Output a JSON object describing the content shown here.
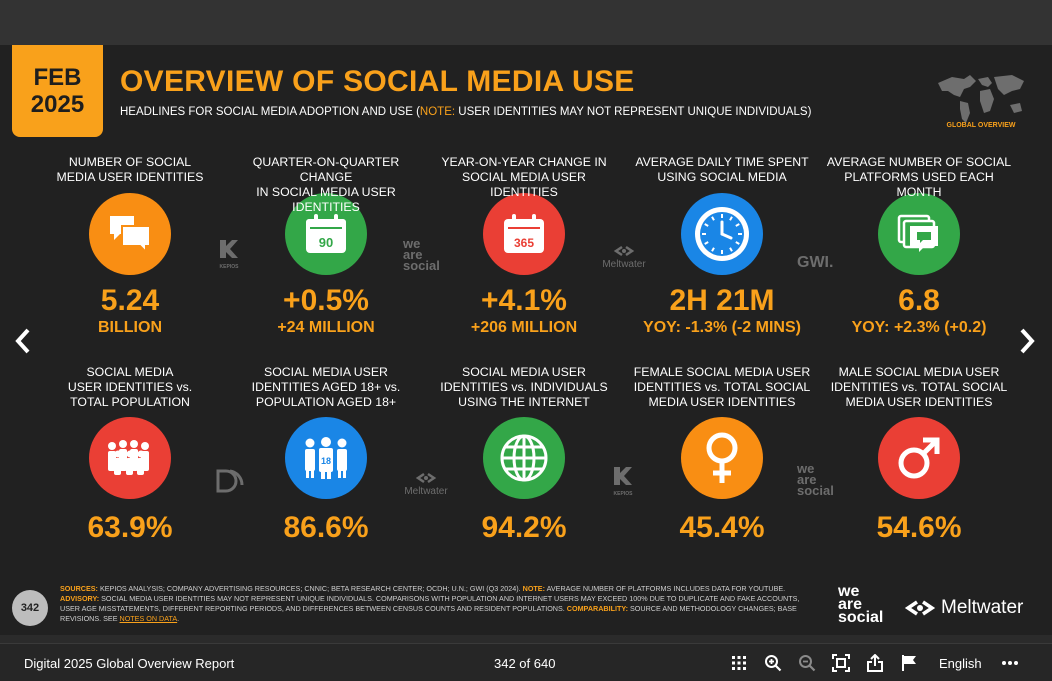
{
  "header": {
    "date_month": "FEB",
    "date_year": "2025",
    "title": "OVERVIEW OF SOCIAL MEDIA USE",
    "subtitle_pre": "HEADLINES FOR SOCIAL MEDIA ADOPTION AND USE (",
    "subtitle_note": "NOTE:",
    "subtitle_post": " USER IDENTITIES MAY NOT REPRESENT UNIQUE INDIVIDUALS)",
    "map_label": "GLOBAL OVERVIEW"
  },
  "colors": {
    "accent": "#f9a11b",
    "orange": "#f98e13",
    "green": "#33a748",
    "red": "#ea3f35",
    "blue": "#1a86e6"
  },
  "row1": [
    {
      "label1": "NUMBER OF SOCIAL",
      "label2": "MEDIA USER IDENTITIES",
      "value": "5.24",
      "sub": "BILLION",
      "icon": "chat-bubbles-icon"
    },
    {
      "label1": "QUARTER-ON-QUARTER CHANGE",
      "label2": "IN SOCIAL MEDIA USER IDENTITIES",
      "value": "+0.5%",
      "sub": "+24 MILLION",
      "icon": "calendar-90-icon",
      "icon_text": "90"
    },
    {
      "label1": "YEAR-ON-YEAR CHANGE IN",
      "label2": "SOCIAL MEDIA USER IDENTITIES",
      "value": "+4.1%",
      "sub": "+206 MILLION",
      "icon": "calendar-365-icon",
      "icon_text": "365"
    },
    {
      "label1": "AVERAGE DAILY TIME SPENT",
      "label2": "USING SOCIAL MEDIA",
      "value": "2H 21M",
      "sub": "YOY: -1.3% (-2 MINS)",
      "icon": "clock-icon"
    },
    {
      "label1": "AVERAGE NUMBER OF SOCIAL",
      "label2": "PLATFORMS USED EACH MONTH",
      "value": "6.8",
      "sub": "YOY: +2.3% (+0.2)",
      "icon": "stacked-chat-icon"
    }
  ],
  "row2": [
    {
      "label1": "SOCIAL MEDIA",
      "label2": "USER IDENTITIES vs.",
      "label3": "TOTAL POPULATION",
      "value": "63.9%",
      "icon": "crowd-icon"
    },
    {
      "label1": "SOCIAL MEDIA USER",
      "label2": "IDENTITIES AGED 18+ vs.",
      "label3": "POPULATION AGED 18+",
      "value": "86.6%",
      "icon": "adults-18-icon",
      "icon_text": "18"
    },
    {
      "label1": "SOCIAL MEDIA USER",
      "label2": "IDENTITIES vs. INDIVIDUALS",
      "label3": "USING THE INTERNET",
      "value": "94.2%",
      "icon": "globe-icon"
    },
    {
      "label1": "FEMALE SOCIAL MEDIA USER",
      "label2": "IDENTITIES vs. TOTAL SOCIAL",
      "label3": "MEDIA USER IDENTITIES",
      "value": "45.4%",
      "icon": "female-symbol-icon"
    },
    {
      "label1": "MALE SOCIAL MEDIA USER",
      "label2": "IDENTITIES vs. TOTAL SOCIAL",
      "label3": "MEDIA USER IDENTITIES",
      "value": "54.6%",
      "icon": "male-symbol-icon"
    }
  ],
  "brands": {
    "kepios": "KEPIOS",
    "we_are_social": [
      "we",
      "are",
      "social"
    ],
    "meltwater": "Meltwater",
    "gwi": "GWI."
  },
  "footer": {
    "page_badge": "342",
    "sources_label": "SOURCES:",
    "sources_text": " KEPIOS ANALYSIS; COMPANY ADVERTISING RESOURCES; CNNIC; BETA RESEARCH CENTER; OCDH; U.N.; GWI (Q3 2024).",
    "note_label": " NOTE:",
    "note_text": " AVERAGE NUMBER OF PLATFORMS INCLUDES DATA FOR YOUTUBE.",
    "advisory_label": "ADVISORY:",
    "advisory_text": " SOCIAL MEDIA USER IDENTITIES MAY NOT REPRESENT UNIQUE INDIVIDUALS. COMPARISONS WITH POPULATION AND INTERNET USERS MAY EXCEED 100% DUE TO DUPLICATE AND FAKE ACCOUNTS, USER AGE MISSTATEMENTS, DIFFERENT REPORTING PERIODS, AND DIFFERENCES BETWEEN CENSUS COUNTS AND RESIDENT POPULATIONS.",
    "comparability_label": " COMPARABILITY:",
    "comparability_text": " SOURCE AND METHODOLOGY CHANGES; BASE REVISIONS. SEE ",
    "notes_link": "NOTES ON DATA",
    "end": ".",
    "was_logo": [
      "we",
      "are",
      "social"
    ],
    "mw_logo": "Meltwater"
  },
  "toolbar": {
    "doc_title": "Digital 2025 Global Overview Report",
    "page_count": "342 of 640",
    "language": "English"
  }
}
